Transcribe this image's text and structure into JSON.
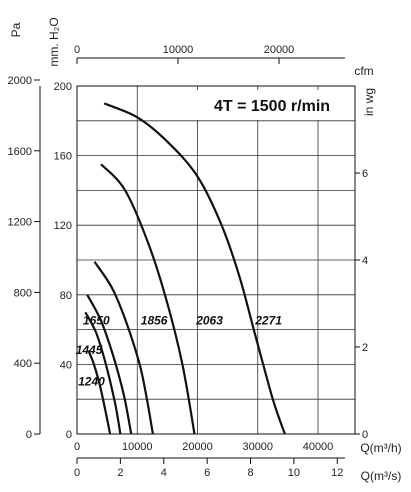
{
  "chart_data": {
    "type": "line",
    "title": "4T = 1500 r/min",
    "axes": {
      "pa_label": "Pa",
      "mmh2o_label": "mm. H₂O",
      "inwg_label": "in wg",
      "cfm_label": "cfm",
      "q_m3h_label": "Q(m³/h)",
      "q_m3s_label": "Q(m³/s)"
    },
    "ylim_mmh2o": [
      0,
      200
    ],
    "xlim_m3h": [
      0,
      45000
    ],
    "pa_ticks": [
      "0",
      "400",
      "800",
      "1200",
      "1600",
      "2000"
    ],
    "mmh2o_ticks": [
      "0",
      "40",
      "80",
      "120",
      "160",
      "200"
    ],
    "inwg_ticks": [
      "0",
      "2",
      "4",
      "6"
    ],
    "cfm_ticks": [
      "0",
      "10000",
      "20000"
    ],
    "m3h_ticks": [
      "0",
      "10000",
      "20000",
      "30000",
      "40000"
    ],
    "m3s_ticks": [
      "0",
      "2",
      "4",
      "6",
      "8",
      "10",
      "12"
    ],
    "series": [
      {
        "name": "1240",
        "x": [
          1900,
          2800,
          3800,
          4800,
          5500
        ],
        "y": [
          48,
          40,
          28,
          12,
          0
        ]
      },
      {
        "name": "1445",
        "x": [
          1400,
          3200,
          4800,
          6300,
          7200
        ],
        "y": [
          70,
          58,
          40,
          18,
          0
        ]
      },
      {
        "name": "1650",
        "x": [
          1700,
          4000,
          6000,
          7800,
          9000
        ],
        "y": [
          80,
          65,
          45,
          22,
          0
        ]
      },
      {
        "name": "1856",
        "x": [
          2900,
          5800,
          8200,
          10400,
          11600,
          12600
        ],
        "y": [
          99,
          84,
          64,
          40,
          20,
          0
        ]
      },
      {
        "name": "2063",
        "x": [
          4000,
          8000,
          12000,
          15000,
          17500,
          19500
        ],
        "y": [
          155,
          140,
          108,
          75,
          40,
          0
        ]
      },
      {
        "name": "2271",
        "x": [
          4500,
          10000,
          15000,
          20000,
          24000,
          27000,
          29500,
          32500,
          34500
        ],
        "y": [
          190,
          182,
          168,
          148,
          120,
          90,
          58,
          20,
          0
        ]
      }
    ],
    "curve_labels": [
      {
        "text": "1240",
        "x": 2400,
        "y": 28
      },
      {
        "text": "1445",
        "x": 2000,
        "y": 46
      },
      {
        "text": "1650",
        "x": 3200,
        "y": 63
      },
      {
        "text": "1856",
        "x": 12800,
        "y": 63
      },
      {
        "text": "2063",
        "x": 22000,
        "y": 63
      },
      {
        "text": "2271",
        "x": 31800,
        "y": 63
      }
    ]
  }
}
